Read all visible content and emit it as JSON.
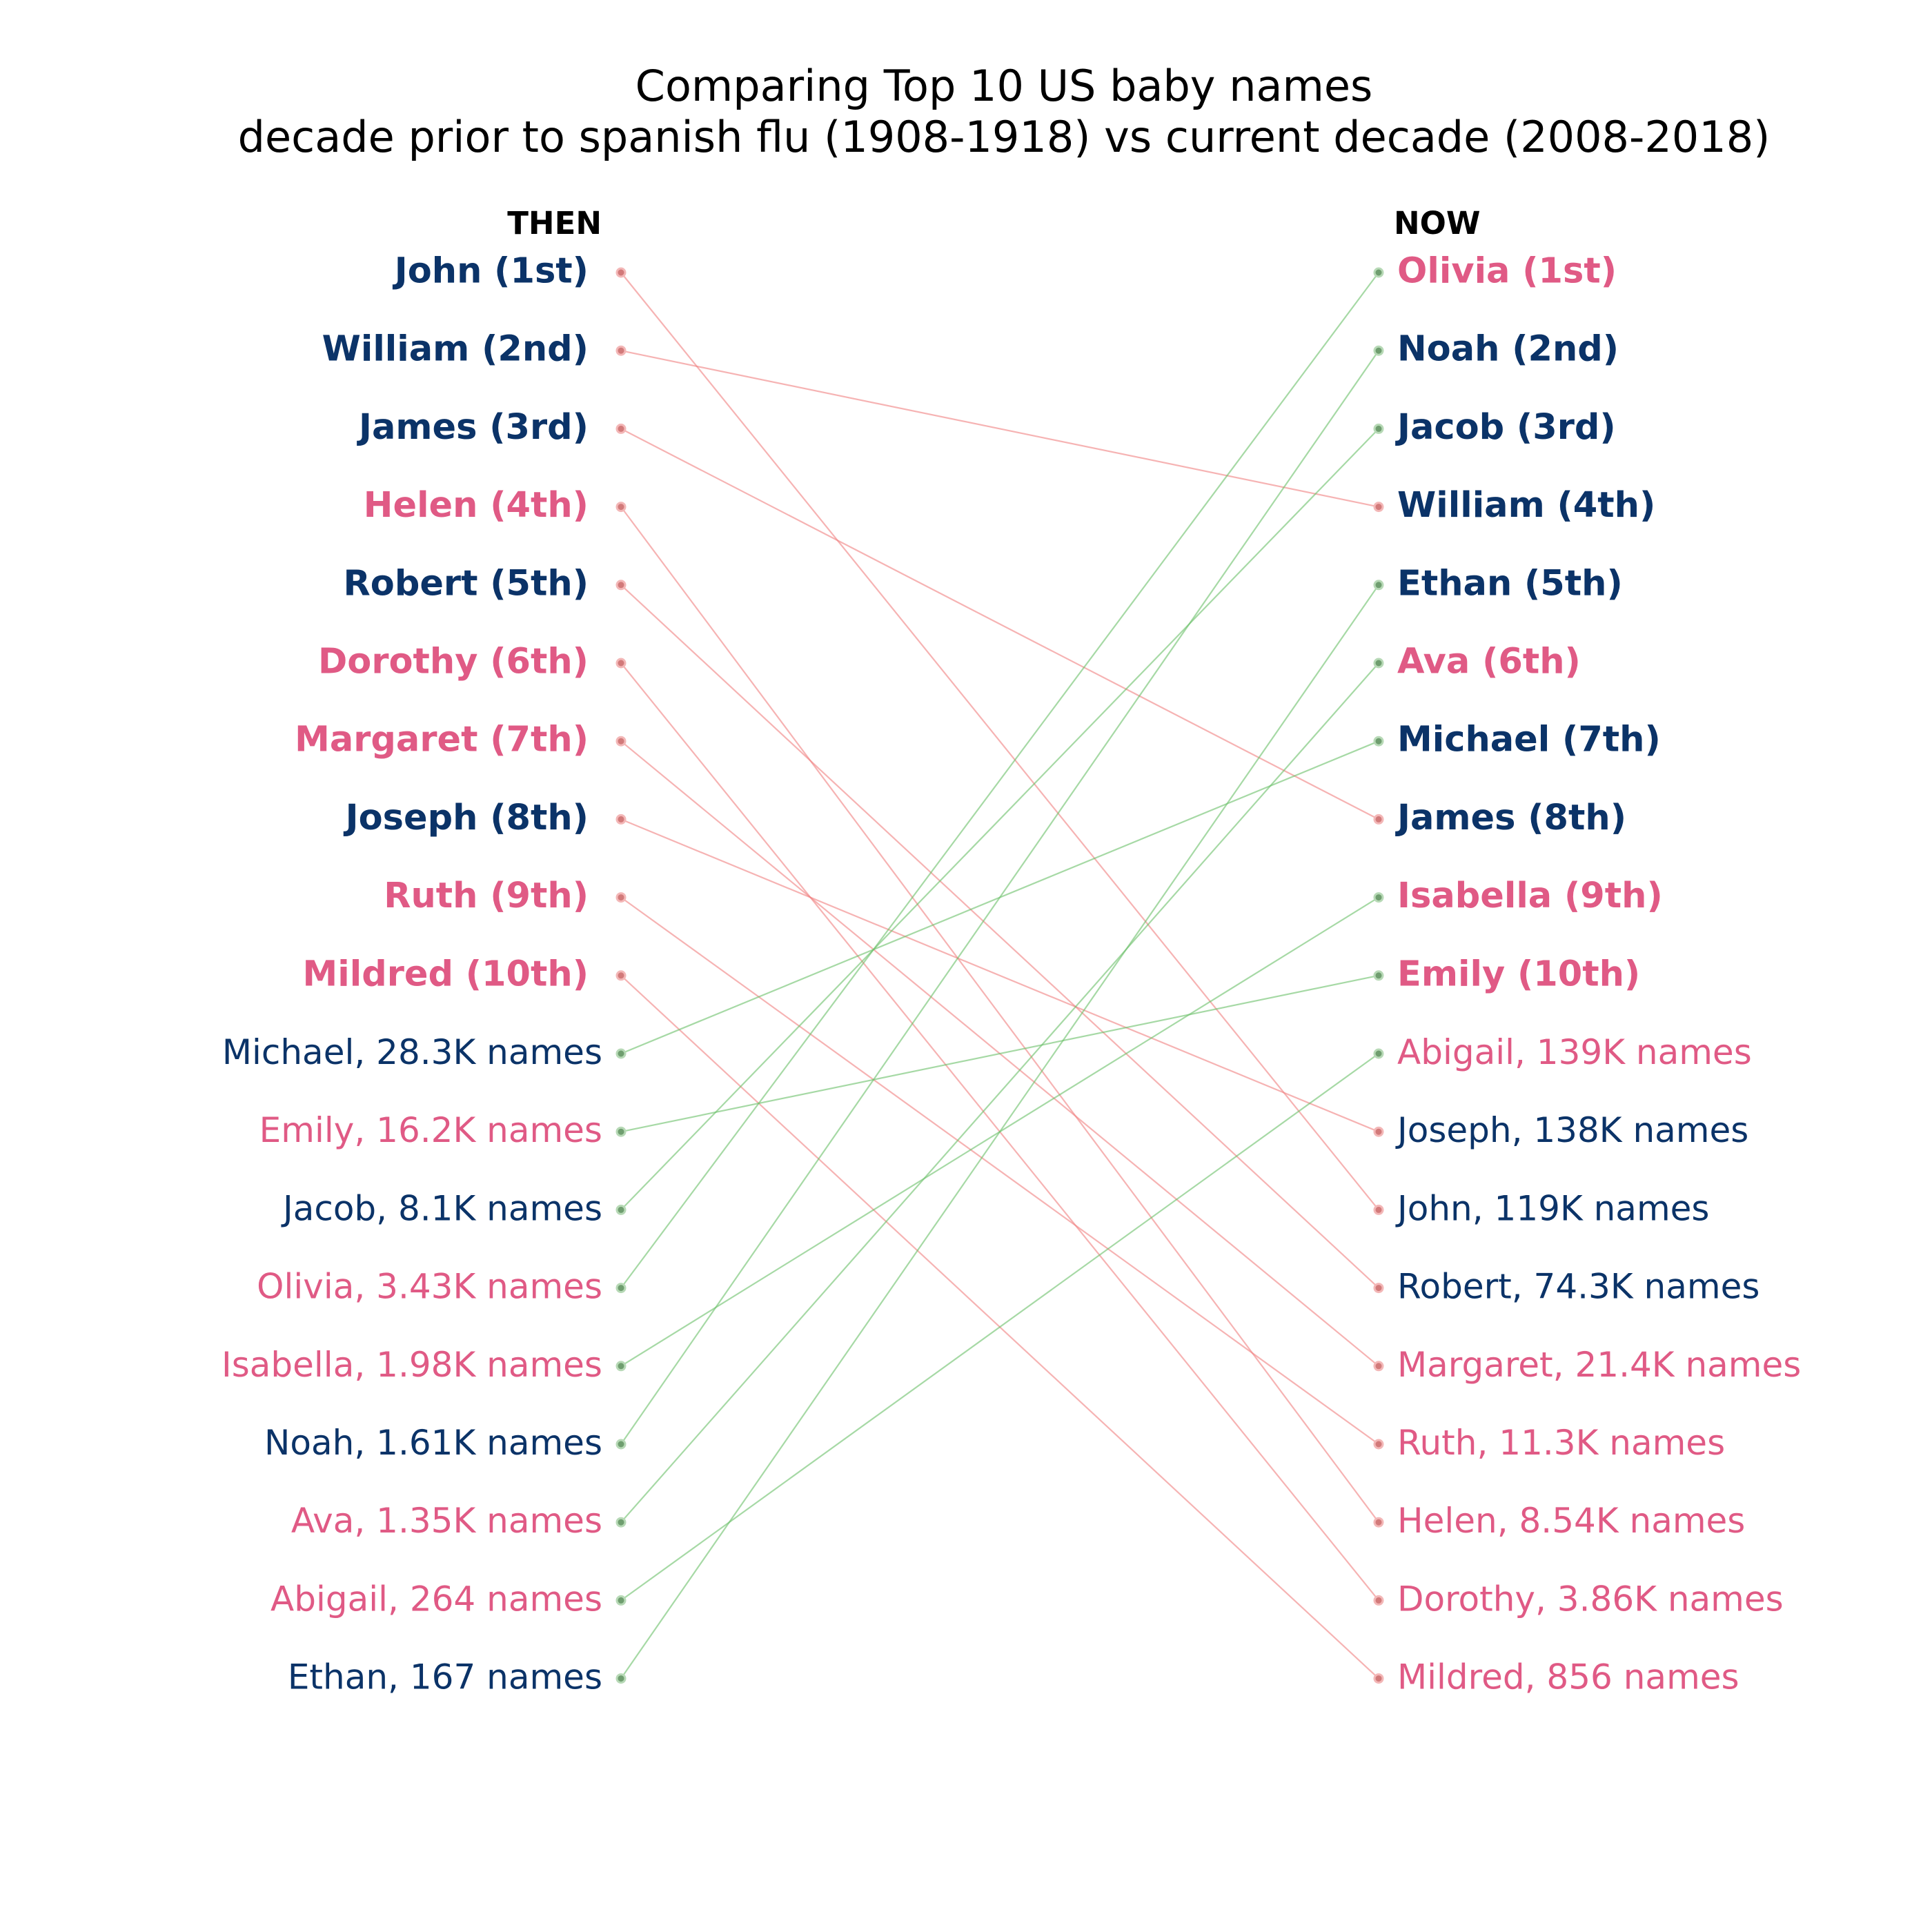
{
  "chart_data": {
    "type": "slope",
    "title": "Comparing Top 10 US baby names",
    "subtitle": "decade prior to spanish flu (1908-1918) vs current decade (2008-2018)",
    "left_header": "THEN",
    "right_header": "NOW",
    "colors": {
      "boy": "#0b3368",
      "girl": "#e05a85",
      "falling": "#f08080",
      "rising": "#6abf69",
      "header": "#000000"
    },
    "left": [
      {
        "name": "John",
        "label": "John (1st)",
        "gender": "boy",
        "top10": true
      },
      {
        "name": "William",
        "label": "William (2nd)",
        "gender": "boy",
        "top10": true
      },
      {
        "name": "James",
        "label": "James (3rd)",
        "gender": "boy",
        "top10": true
      },
      {
        "name": "Helen",
        "label": "Helen (4th)",
        "gender": "girl",
        "top10": true
      },
      {
        "name": "Robert",
        "label": "Robert (5th)",
        "gender": "boy",
        "top10": true
      },
      {
        "name": "Dorothy",
        "label": "Dorothy (6th)",
        "gender": "girl",
        "top10": true
      },
      {
        "name": "Margaret",
        "label": "Margaret (7th)",
        "gender": "girl",
        "top10": true
      },
      {
        "name": "Joseph",
        "label": "Joseph (8th)",
        "gender": "boy",
        "top10": true
      },
      {
        "name": "Ruth",
        "label": "Ruth (9th)",
        "gender": "girl",
        "top10": true
      },
      {
        "name": "Mildred",
        "label": "Mildred (10th)",
        "gender": "girl",
        "top10": true
      },
      {
        "name": "Michael",
        "label": "Michael, 28.3K names",
        "gender": "boy",
        "top10": false
      },
      {
        "name": "Emily",
        "label": "Emily, 16.2K names",
        "gender": "girl",
        "top10": false
      },
      {
        "name": "Jacob",
        "label": "Jacob, 8.1K names",
        "gender": "boy",
        "top10": false
      },
      {
        "name": "Olivia",
        "label": "Olivia, 3.43K names",
        "gender": "girl",
        "top10": false
      },
      {
        "name": "Isabella",
        "label": "Isabella, 1.98K names",
        "gender": "girl",
        "top10": false
      },
      {
        "name": "Noah",
        "label": "Noah, 1.61K names",
        "gender": "boy",
        "top10": false
      },
      {
        "name": "Ava",
        "label": "Ava, 1.35K names",
        "gender": "girl",
        "top10": false
      },
      {
        "name": "Abigail",
        "label": "Abigail, 264 names",
        "gender": "girl",
        "top10": false
      },
      {
        "name": "Ethan",
        "label": "Ethan, 167 names",
        "gender": "boy",
        "top10": false
      }
    ],
    "right": [
      {
        "name": "Olivia",
        "label": "Olivia (1st)",
        "gender": "girl",
        "top10": true
      },
      {
        "name": "Noah",
        "label": "Noah (2nd)",
        "gender": "boy",
        "top10": true
      },
      {
        "name": "Jacob",
        "label": "Jacob (3rd)",
        "gender": "boy",
        "top10": true
      },
      {
        "name": "William",
        "label": "William (4th)",
        "gender": "boy",
        "top10": true
      },
      {
        "name": "Ethan",
        "label": "Ethan (5th)",
        "gender": "boy",
        "top10": true
      },
      {
        "name": "Ava",
        "label": "Ava (6th)",
        "gender": "girl",
        "top10": true
      },
      {
        "name": "Michael",
        "label": "Michael (7th)",
        "gender": "boy",
        "top10": true
      },
      {
        "name": "James",
        "label": "James (8th)",
        "gender": "boy",
        "top10": true
      },
      {
        "name": "Isabella",
        "label": "Isabella (9th)",
        "gender": "girl",
        "top10": true
      },
      {
        "name": "Emily",
        "label": "Emily (10th)",
        "gender": "girl",
        "top10": true
      },
      {
        "name": "Abigail",
        "label": "Abigail, 139K names",
        "gender": "girl",
        "top10": false
      },
      {
        "name": "Joseph",
        "label": "Joseph, 138K names",
        "gender": "boy",
        "top10": false
      },
      {
        "name": "John",
        "label": "John, 119K names",
        "gender": "boy",
        "top10": false
      },
      {
        "name": "Robert",
        "label": "Robert, 74.3K names",
        "gender": "boy",
        "top10": false
      },
      {
        "name": "Margaret",
        "label": "Margaret, 21.4K names",
        "gender": "girl",
        "top10": false
      },
      {
        "name": "Ruth",
        "label": "Ruth, 11.3K names",
        "gender": "girl",
        "top10": false
      },
      {
        "name": "Helen",
        "label": "Helen, 8.54K names",
        "gender": "girl",
        "top10": false
      },
      {
        "name": "Dorothy",
        "label": "Dorothy, 3.86K names",
        "gender": "girl",
        "top10": false
      },
      {
        "name": "Mildred",
        "label": "Mildred, 856 names",
        "gender": "girl",
        "top10": false
      }
    ]
  }
}
